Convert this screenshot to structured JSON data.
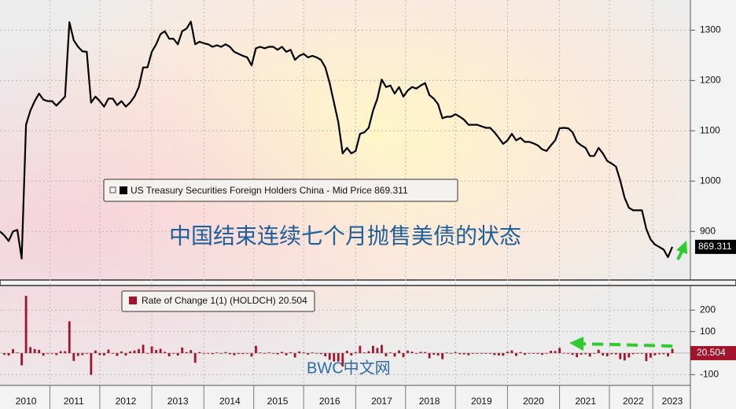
{
  "chart_data": [
    {
      "type": "line",
      "series": [
        {
          "name": "US Treasury Securities Foreign Holders China - Mid Price",
          "color": "#000000",
          "values": [
            900,
            892,
            881,
            900,
            903,
            846,
            1112,
            1140,
            1159,
            1174,
            1162,
            1159,
            1159,
            1150,
            1159,
            1168,
            1316,
            1280,
            1267,
            1258,
            1257,
            1156,
            1168,
            1159,
            1148,
            1164,
            1164,
            1151,
            1159,
            1148,
            1156,
            1168,
            1187,
            1226,
            1226,
            1257,
            1272,
            1292,
            1298,
            1283,
            1283,
            1272,
            1298,
            1303,
            1317,
            1272,
            1277,
            1274,
            1272,
            1267,
            1270,
            1267,
            1272,
            1267,
            1257,
            1253,
            1249,
            1246,
            1230,
            1264,
            1267,
            1264,
            1267,
            1267,
            1261,
            1267,
            1257,
            1261,
            1241,
            1249,
            1253,
            1246,
            1249,
            1246,
            1241,
            1226,
            1195,
            1156,
            1117,
            1055,
            1066,
            1055,
            1060,
            1094,
            1097,
            1106,
            1140,
            1164,
            1202,
            1187,
            1190,
            1174,
            1187,
            1168,
            1180,
            1187,
            1184,
            1190,
            1195,
            1171,
            1164,
            1153,
            1125,
            1128,
            1128,
            1133,
            1128,
            1122,
            1112,
            1112,
            1112,
            1109,
            1106,
            1106,
            1097,
            1086,
            1074,
            1081,
            1094,
            1081,
            1086,
            1078,
            1078,
            1075,
            1071,
            1063,
            1060,
            1071,
            1081,
            1105,
            1106,
            1105,
            1097,
            1078,
            1071,
            1066,
            1050,
            1050,
            1066,
            1055,
            1040,
            1035,
            1029,
            1001,
            967,
            947,
            942,
            942,
            942,
            905,
            884,
            874,
            869,
            864,
            848.8,
            869.311
          ]
        }
      ],
      "ylim": [
        805,
        1360
      ],
      "yticks": [
        900,
        1000,
        1100,
        1200,
        1300
      ],
      "grid": true,
      "annotations": [
        "中国结束连续七个月抛售美债的状态"
      ]
    },
    {
      "type": "bar",
      "categories": [
        null,
        null,
        null,
        null,
        null,
        null,
        "2010",
        null,
        null,
        null,
        null,
        null,
        null,
        null,
        null,
        null,
        null,
        "2011",
        null,
        null,
        null,
        null,
        null,
        null,
        null,
        null,
        null,
        null,
        null,
        "2012",
        null,
        null,
        null,
        null,
        null,
        null,
        null,
        null,
        null,
        null,
        null,
        "2013",
        null,
        null,
        null,
        null,
        null,
        null,
        null,
        null,
        null,
        null,
        null,
        "2014",
        null,
        null,
        null,
        null,
        null,
        null,
        null,
        null,
        null,
        null,
        "2015",
        null,
        null,
        null,
        null,
        null,
        null,
        null,
        null,
        null,
        null,
        null,
        "2016",
        null,
        null,
        null,
        null,
        null,
        null,
        null,
        null,
        null,
        null,
        null,
        "2017",
        null,
        null,
        null,
        null,
        null,
        null,
        null,
        null,
        null,
        null,
        "2018",
        null,
        null,
        null,
        null,
        null,
        null,
        null,
        null,
        null,
        null,
        null,
        "2019",
        null,
        null,
        null,
        null,
        null,
        null,
        null,
        null,
        null,
        null,
        null,
        "2020",
        null,
        null,
        null,
        null,
        null,
        null,
        null,
        null,
        null,
        null,
        null,
        "2021",
        null,
        null,
        null,
        null,
        null,
        null,
        null,
        null,
        null,
        null,
        "2022",
        null,
        null,
        null,
        null,
        null,
        null,
        null,
        null,
        "2023"
      ],
      "series": [
        {
          "name": "Rate of Change 1(1) (HOLDCH)",
          "color": "#a3142c",
          "values": [
            null,
            -8,
            -11,
            19,
            3,
            -57,
            266,
            28,
            19,
            15,
            -12,
            -3,
            0,
            -9,
            9,
            9,
            148,
            -36,
            -13,
            -9,
            -1,
            -101,
            12,
            -9,
            -11,
            16,
            0,
            -13,
            8,
            -11,
            8,
            12,
            19,
            39,
            0,
            31,
            15,
            20,
            6,
            -15,
            0,
            -11,
            26,
            5,
            14,
            -45,
            5,
            -3,
            -2,
            -5,
            3,
            -3,
            5,
            -5,
            -10,
            -4,
            -4,
            -3,
            -16,
            34,
            3,
            -3,
            3,
            0,
            -6,
            6,
            -10,
            4,
            -20,
            8,
            4,
            -7,
            3,
            -3,
            -5,
            -15,
            -31,
            -39,
            -39,
            -62,
            11,
            -11,
            5,
            34,
            3,
            9,
            34,
            24,
            38,
            -15,
            3,
            -16,
            13,
            -19,
            12,
            7,
            -3,
            6,
            5,
            -24,
            -7,
            -11,
            -28,
            3,
            0,
            5,
            -5,
            -6,
            -10,
            0,
            0,
            -3,
            -3,
            0,
            -9,
            -11,
            -12,
            7,
            13,
            -13,
            5,
            -8,
            0,
            -3,
            -4,
            -8,
            -3,
            11,
            10,
            24,
            1,
            -1,
            -8,
            -19,
            -7,
            -5,
            -16,
            0,
            16,
            -11,
            -15,
            -5,
            -6,
            -28,
            -34,
            -20,
            -5,
            0,
            0,
            -37,
            -21,
            -10,
            -5,
            -5,
            -15.2,
            20.504
          ]
        }
      ],
      "ylim": [
        -150,
        307
      ],
      "yticks": [
        200,
        100,
        -100
      ],
      "grid": true,
      "annotations": [
        "BWC中文网"
      ]
    }
  ]
}
